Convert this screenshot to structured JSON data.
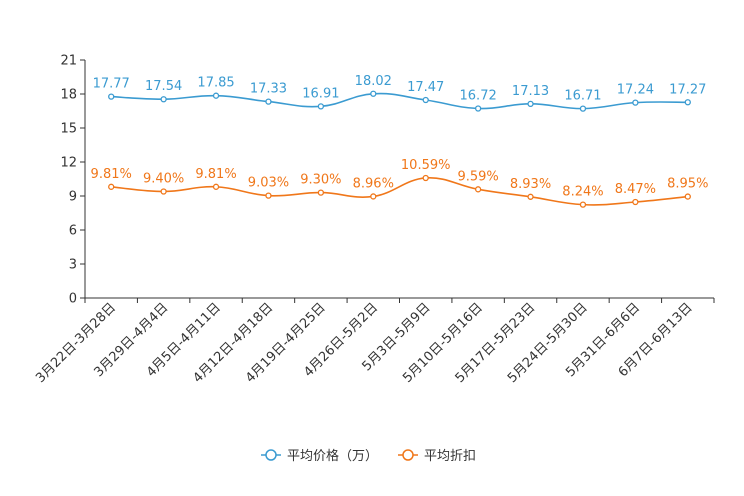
{
  "chart_data": {
    "type": "line",
    "title": "",
    "xlabel": "",
    "ylabel": "",
    "ylim": [
      0,
      21
    ],
    "yticks": [
      0,
      3,
      6,
      9,
      12,
      15,
      18,
      21
    ],
    "grid": false,
    "legend_position": "bottom-center",
    "categories": [
      "3月22日-3月28日",
      "3月29日-4月4日",
      "4月5日-4月11日",
      "4月12日-4月18日",
      "4月19日-4月25日",
      "4月26日-5月2日",
      "5月3日-5月9日",
      "5月10日-5月16日",
      "5月17日-5月23日",
      "5月24日-5月30日",
      "5月31日-6月6日",
      "6月7日-6月13日"
    ],
    "series": [
      {
        "name": "平均价格（万）",
        "color": "#3b9bd1",
        "values": [
          17.77,
          17.54,
          17.85,
          17.33,
          16.91,
          18.02,
          17.47,
          16.72,
          17.13,
          16.71,
          17.24,
          17.27
        ],
        "labels": [
          "17.77",
          "17.54",
          "17.85",
          "17.33",
          "16.91",
          "18.02",
          "17.47",
          "16.72",
          "17.13",
          "16.71",
          "17.24",
          "17.27"
        ]
      },
      {
        "name": "平均折扣",
        "color": "#f0771a",
        "values": [
          9.81,
          9.4,
          9.81,
          9.03,
          9.3,
          8.96,
          10.59,
          9.59,
          8.93,
          8.24,
          8.47,
          8.95
        ],
        "labels": [
          "9.81%",
          "9.40%",
          "9.81%",
          "9.03%",
          "9.30%",
          "8.96%",
          "10.59%",
          "9.59%",
          "8.93%",
          "8.24%",
          "8.47%",
          "8.95%"
        ]
      }
    ]
  }
}
